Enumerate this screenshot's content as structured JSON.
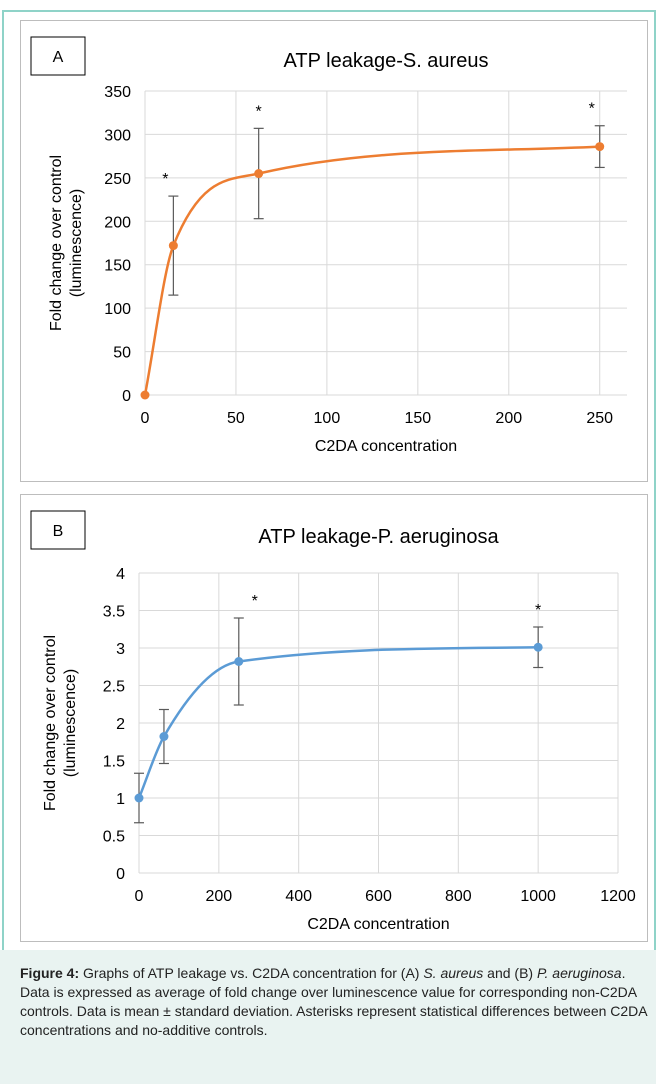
{
  "chart_data": [
    {
      "type": "scatter",
      "panel_label": "A",
      "title": "ATP leakage-S. aureus",
      "xlabel": "C2DA concentration",
      "ylabel_line1": "Fold change over control",
      "ylabel_line2": "(luminescence)",
      "xlim": [
        0,
        265
      ],
      "ylim": [
        0,
        350
      ],
      "xticks": [
        0,
        50,
        100,
        150,
        200,
        250
      ],
      "yticks": [
        0,
        50,
        100,
        150,
        200,
        250,
        300,
        350
      ],
      "grid": true,
      "color": "#ed7d31",
      "series": [
        {
          "x": [
            0,
            15.6,
            62.5,
            250
          ],
          "y": [
            0,
            172,
            255,
            286
          ],
          "error": [
            0,
            57,
            52,
            24
          ],
          "significant": [
            false,
            true,
            true,
            true
          ]
        }
      ],
      "significance_marker": "*"
    },
    {
      "type": "scatter",
      "panel_label": "B",
      "title": "ATP leakage-P. aeruginosa",
      "xlabel": "C2DA concentration",
      "ylabel_line1": "Fold change over control",
      "ylabel_line2": "(luminescence)",
      "xlim": [
        0,
        1200
      ],
      "ylim": [
        0,
        4
      ],
      "xticks": [
        0,
        200,
        400,
        600,
        800,
        1000,
        1200
      ],
      "yticks": [
        0,
        0.5,
        1,
        1.5,
        2,
        2.5,
        3,
        3.5,
        4
      ],
      "grid": true,
      "color": "#5b9bd5",
      "series": [
        {
          "x": [
            0,
            62.5,
            250,
            1000
          ],
          "y": [
            1.0,
            1.82,
            2.82,
            3.01
          ],
          "error": [
            0.33,
            0.36,
            0.58,
            0.27
          ],
          "significant": [
            false,
            false,
            true,
            true
          ]
        }
      ],
      "significance_marker": "*"
    }
  ],
  "caption": {
    "label": "Figure 4:",
    "text_1": " Graphs of ATP leakage vs. C2DA concentration for (A) ",
    "italic_1": "S. aureus",
    "text_2": " and (B) ",
    "italic_2": "P. aeruginosa",
    "text_3": ".  Data is expressed as average of fold change over luminescence value for corresponding non-C2DA controls. Data is mean ± standard deviation.  Asterisks represent statistical differences between C2DA concentrations and no-additive controls."
  }
}
